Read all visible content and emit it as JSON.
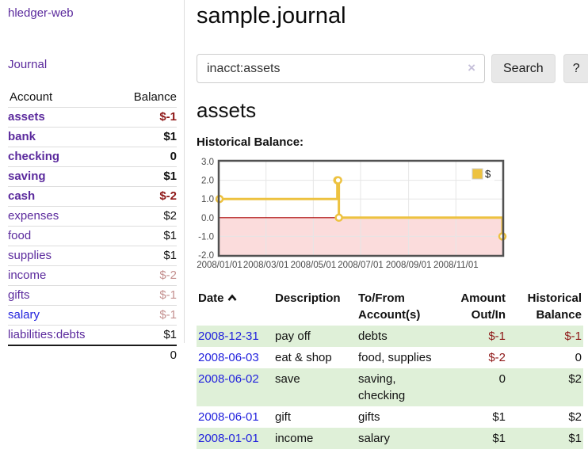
{
  "colors": {
    "link_purple": "#5b2a9d",
    "link_blue": "#2222dd",
    "negative": "#8e1717",
    "negative_faded": "#c4908f",
    "row_highlight_green": "#dff0d8",
    "chart_line_gold": "#edc240"
  },
  "sidebar": {
    "app_title": "hledger-web",
    "journal_link": "Journal",
    "accounts": {
      "col_account": "Account",
      "col_balance": "Balance",
      "rows": [
        {
          "name": "assets",
          "balance": "$-1"
        },
        {
          "name": "bank",
          "balance": "$1"
        },
        {
          "name": "checking",
          "balance": "0"
        },
        {
          "name": "saving",
          "balance": "$1"
        },
        {
          "name": "cash",
          "balance": "$-2"
        },
        {
          "name": "expenses",
          "balance": "$2"
        },
        {
          "name": "food",
          "balance": "$1"
        },
        {
          "name": "supplies",
          "balance": "$1"
        },
        {
          "name": "income",
          "balance": "$-2"
        },
        {
          "name": "gifts",
          "balance": "$-1"
        },
        {
          "name": "salary",
          "balance": "$-1"
        },
        {
          "name": "liabilities:debts",
          "balance": "$1"
        }
      ],
      "total": "0"
    }
  },
  "main": {
    "title": "sample.journal",
    "search": {
      "value": "inacct:assets",
      "clear_icon": "×",
      "search_button": "Search",
      "help_button": "?"
    },
    "account_heading": "assets",
    "chart_label": "Historical Balance:"
  },
  "chart_data": {
    "type": "line",
    "step": true,
    "grid": true,
    "legend_position": "top-right",
    "xlim_days": [
      0,
      365
    ],
    "ylim": [
      -2,
      3
    ],
    "y_ticks": [
      3,
      2,
      1,
      0,
      -1,
      -2
    ],
    "x_ticks": [
      {
        "day": 0,
        "label": "2008/01/01"
      },
      {
        "day": 60,
        "label": "2008/03/01"
      },
      {
        "day": 121,
        "label": "2008/05/01"
      },
      {
        "day": 182,
        "label": "2008/07/01"
      },
      {
        "day": 244,
        "label": "2008/09/01"
      },
      {
        "day": 305,
        "label": "2008/11/01"
      }
    ],
    "series": [
      {
        "name": "$",
        "points": [
          {
            "date": "2008-01-01",
            "day": 0,
            "value": 1
          },
          {
            "date": "2008-06-01",
            "day": 152,
            "value": 2
          },
          {
            "date": "2008-06-02",
            "day": 153,
            "value": 2
          },
          {
            "date": "2008-06-03",
            "day": 154,
            "value": 0
          },
          {
            "date": "2008-12-31",
            "day": 365,
            "value": -1
          }
        ]
      }
    ],
    "colors": {
      "line": "#edc240",
      "grid": "#e6e6e6",
      "zero_line": "#aa0000",
      "below_zero_fill": "#fbdcdc",
      "border": "#515151"
    }
  },
  "register": {
    "headers": {
      "date": "Date",
      "sort_icon": "chevron-up",
      "description": "Description",
      "account_line1": "To/From",
      "account_line2": "Account(s)",
      "amount_line1": "Amount",
      "amount_line2": "Out/In",
      "balance_line1": "Historical",
      "balance_line2": "Balance"
    },
    "rows": [
      {
        "date": "2008-12-31",
        "description": "pay off",
        "accounts": "debts",
        "amount": "$-1",
        "balance": "$-1"
      },
      {
        "date": "2008-06-03",
        "description": "eat & shop",
        "accounts": "food, supplies",
        "amount": "$-2",
        "balance": "0"
      },
      {
        "date": "2008-06-02",
        "description": "save",
        "accounts": "saving, checking",
        "amount": "0",
        "balance": "$2"
      },
      {
        "date": "2008-06-01",
        "description": "gift",
        "accounts": "gifts",
        "amount": "$1",
        "balance": "$2"
      },
      {
        "date": "2008-01-01",
        "description": "income",
        "accounts": "salary",
        "amount": "$1",
        "balance": "$1"
      }
    ]
  }
}
